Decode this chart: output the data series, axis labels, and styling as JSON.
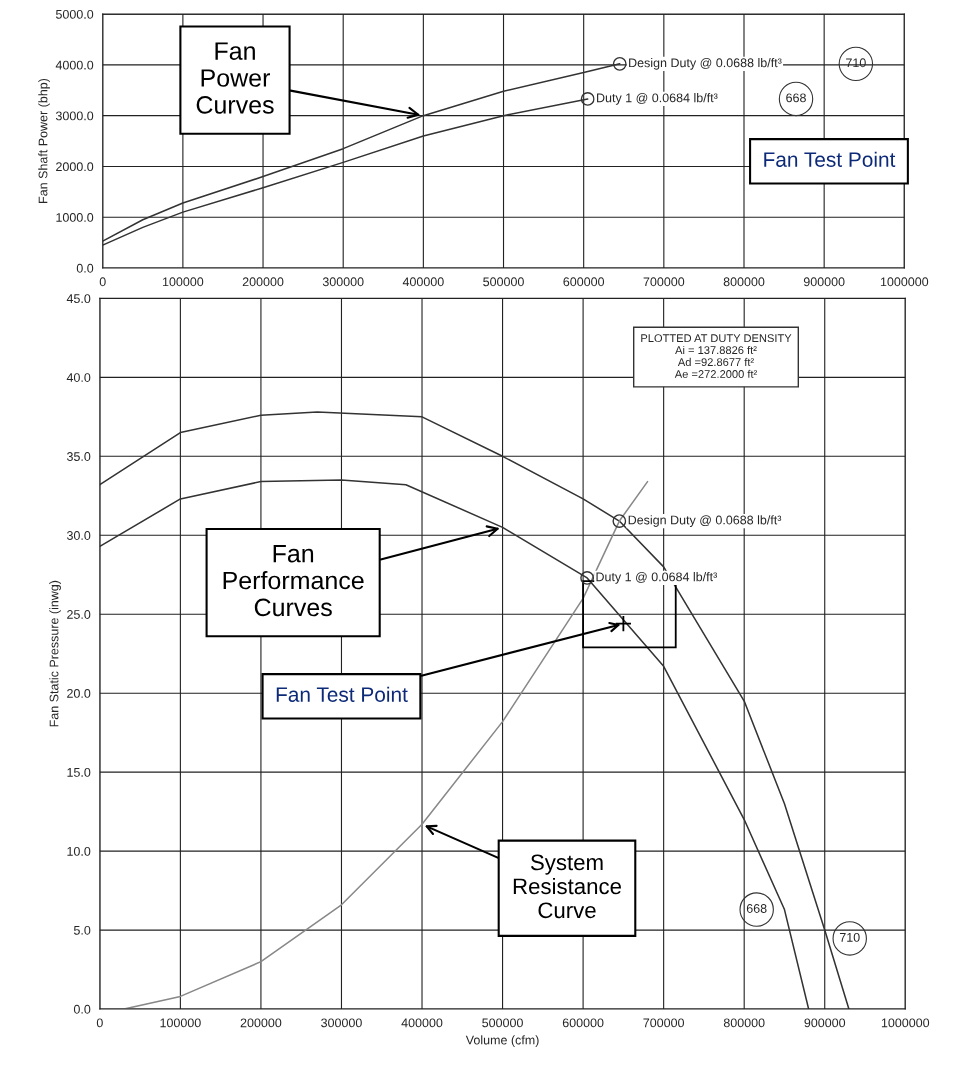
{
  "chart_data": [
    {
      "type": "line",
      "ylabel": "Fan Shaft Power (bhp)",
      "xlim": [
        0,
        1000000
      ],
      "ylim": [
        0,
        5000
      ],
      "xticks": [
        0,
        100000,
        200000,
        300000,
        400000,
        500000,
        600000,
        700000,
        800000,
        900000,
        1000000
      ],
      "yticks": [
        {
          "value": 0,
          "label": "0.0"
        },
        {
          "value": 1000,
          "label": "1000.0"
        },
        {
          "value": 2000,
          "label": "2000.0"
        },
        {
          "value": 3000,
          "label": "3000.0"
        },
        {
          "value": 4000,
          "label": "4000.0"
        },
        {
          "value": 5000,
          "label": "5000.0"
        }
      ],
      "grid": true,
      "series": [
        {
          "name": "710",
          "color": "#333333",
          "x": [
            0,
            50000,
            100000,
            200000,
            300000,
            400000,
            500000,
            600000,
            645000
          ],
          "values": [
            530,
            950,
            1280,
            1800,
            2350,
            3000,
            3480,
            3850,
            4020
          ]
        },
        {
          "name": "668",
          "color": "#333333",
          "x": [
            0,
            50000,
            100000,
            200000,
            300000,
            400000,
            500000,
            605000
          ],
          "values": [
            450,
            800,
            1100,
            1580,
            2080,
            2600,
            3000,
            3330
          ]
        },
        {
          "type": "scatter",
          "marker": "circle",
          "color": "#333333",
          "x": [
            645000,
            605000
          ],
          "values": [
            4020,
            3330
          ]
        }
      ],
      "annotations": [
        {
          "text": "Fan Power Curves",
          "x": 400000,
          "y": 3000
        },
        "Fan Test Point",
        {
          "text": "Design Duty @ 0.0688 lb/ft³",
          "x": 645000,
          "y": 4020
        },
        {
          "text": "Duty 1 @ 0.0684 lb/ft³",
          "x": 605000,
          "y": 3330
        }
      ]
    },
    {
      "type": "line",
      "xlabel": "Volume (cfm)",
      "ylabel": "Fan Static Pressure (inwg)",
      "xlim": [
        0,
        1000000
      ],
      "ylim": [
        0,
        45
      ],
      "xticks": [
        0,
        100000,
        200000,
        300000,
        400000,
        500000,
        600000,
        700000,
        800000,
        900000,
        1000000
      ],
      "yticks": [
        {
          "value": 0,
          "label": "0.0"
        },
        {
          "value": 5,
          "label": "5.0"
        },
        {
          "value": 10,
          "label": "10.0"
        },
        {
          "value": 15,
          "label": "15.0"
        },
        {
          "value": 20,
          "label": "20.0"
        },
        {
          "value": 25,
          "label": "25.0"
        },
        {
          "value": 30,
          "label": "30.0"
        },
        {
          "value": 35,
          "label": "35.0"
        },
        {
          "value": 40,
          "label": "40.0"
        },
        {
          "value": 45,
          "label": "45.0"
        }
      ],
      "grid": true,
      "series": [
        {
          "name": "710",
          "color": "#333333",
          "x": [
            0,
            100000,
            200000,
            270000,
            400000,
            500000,
            600000,
            645000,
            700000,
            800000,
            850000,
            900000,
            930000
          ],
          "values": [
            33.2,
            36.5,
            37.6,
            37.8,
            37.5,
            35.0,
            32.3,
            30.9,
            28.0,
            19.5,
            13.0,
            5.0,
            0
          ]
        },
        {
          "name": "668",
          "color": "#333333",
          "x": [
            0,
            100000,
            200000,
            300000,
            380000,
            500000,
            605000,
            700000,
            800000,
            850000,
            880000
          ],
          "values": [
            29.3,
            32.3,
            33.4,
            33.5,
            33.2,
            30.5,
            27.3,
            21.7,
            12.0,
            6.3,
            0
          ]
        },
        {
          "color": "#888888",
          "x": [
            30000,
            100000,
            200000,
            300000,
            400000,
            500000,
            600000,
            645000,
            680000
          ],
          "values": [
            0,
            0.8,
            3.0,
            6.6,
            11.7,
            18.2,
            26.0,
            30.9,
            33.4
          ]
        },
        {
          "type": "scatter",
          "marker": "circle",
          "color": "#333333",
          "x": [
            645000,
            605000
          ],
          "values": [
            30.9,
            27.3
          ]
        },
        {
          "type": "scatter",
          "marker": "cross",
          "color": "#000000",
          "x": [
            650000
          ],
          "values": [
            24.4
          ]
        }
      ],
      "annotations": [
        "PLOTTED AT DUTY DENSITY\nAi = 137.8826 ft²\nAd =92.8677 ft²\nAe =272.2000 ft²",
        {
          "text": "Fan Performance Curves",
          "x": 500000,
          "y": 30.5
        },
        {
          "text": "Fan Test Point",
          "x": 650000,
          "y": 24.4
        },
        {
          "text": "System Resistance Curve",
          "x": 400000,
          "y": 11.7
        },
        {
          "text": "Design Duty @ 0.0688 lb/ft³",
          "x": 645000,
          "y": 30.9
        },
        {
          "text": "Duty 1 @ 0.0684 lb/ft³",
          "x": 605000,
          "y": 27.3
        }
      ]
    }
  ]
}
